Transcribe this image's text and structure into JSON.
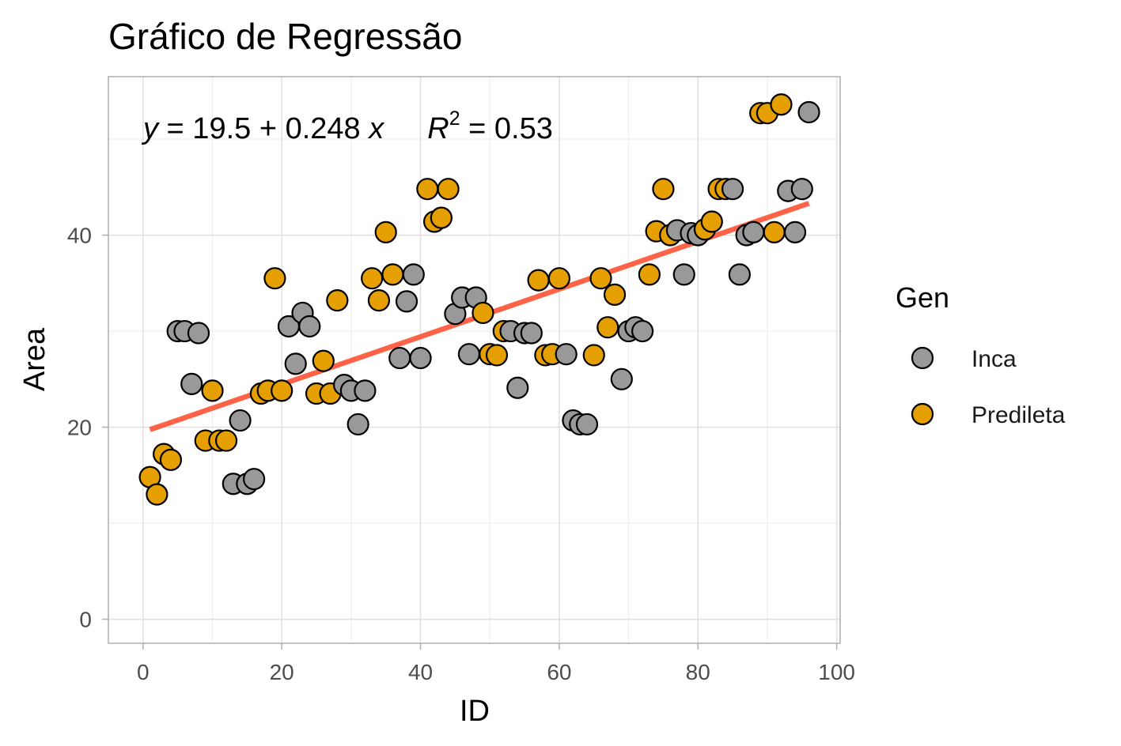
{
  "chart_data": {
    "type": "scatter",
    "title": "Gráfico de Regressão",
    "xlabel": "ID",
    "ylabel": "Area",
    "xlim": [
      -5,
      100.5
    ],
    "ylim": [
      -2.5,
      56.5
    ],
    "x_ticks": [
      0,
      20,
      40,
      60,
      80,
      100
    ],
    "y_ticks": [
      0,
      20,
      40
    ],
    "grid": true,
    "legend": {
      "title": "Gen",
      "position": "right",
      "entries": [
        {
          "label": "Inca",
          "color": "#999999"
        },
        {
          "label": "Predileta",
          "color": "#E69F00"
        }
      ]
    },
    "regression": {
      "intercept": 19.5,
      "slope": 0.248,
      "x_range": [
        1,
        96
      ],
      "color": "#FF6347",
      "equation": {
        "lhs": "y",
        "eq": " = 19.5 + 0.248 ",
        "var": "x",
        "r": "R",
        "sup": "2",
        "rhs": " = 0.53"
      }
    },
    "series": [
      {
        "name": "Inca",
        "color": "#999999",
        "points": [
          [
            5,
            30.0
          ],
          [
            6,
            30.0
          ],
          [
            7,
            24.5
          ],
          [
            8,
            29.8
          ],
          [
            13,
            14.1
          ],
          [
            14,
            20.7
          ],
          [
            15,
            14.1
          ],
          [
            16,
            14.6
          ],
          [
            21,
            30.5
          ],
          [
            22,
            26.6
          ],
          [
            23,
            31.9
          ],
          [
            24,
            30.5
          ],
          [
            29,
            24.4
          ],
          [
            30,
            23.8
          ],
          [
            31,
            20.3
          ],
          [
            32,
            23.8
          ],
          [
            37,
            27.2
          ],
          [
            38,
            33.1
          ],
          [
            39,
            35.9
          ],
          [
            40,
            27.2
          ],
          [
            45,
            31.8
          ],
          [
            46,
            33.5
          ],
          [
            47,
            27.6
          ],
          [
            48,
            33.5
          ],
          [
            53,
            30.0
          ],
          [
            54,
            24.1
          ],
          [
            55,
            29.8
          ],
          [
            56,
            29.8
          ],
          [
            61,
            27.6
          ],
          [
            62,
            20.7
          ],
          [
            63,
            20.3
          ],
          [
            64,
            20.3
          ],
          [
            69,
            25.0
          ],
          [
            70,
            30.0
          ],
          [
            71,
            30.4
          ],
          [
            72,
            30.0
          ],
          [
            77,
            40.5
          ],
          [
            78,
            35.9
          ],
          [
            79,
            40.2
          ],
          [
            80,
            40.0
          ],
          [
            85,
            44.8
          ],
          [
            86,
            35.9
          ],
          [
            87,
            40.0
          ],
          [
            88,
            40.3
          ],
          [
            93,
            44.6
          ],
          [
            94,
            40.3
          ],
          [
            95,
            44.8
          ],
          [
            96,
            52.8
          ]
        ]
      },
      {
        "name": "Predileta",
        "color": "#E69F00",
        "points": [
          [
            1,
            14.8
          ],
          [
            2,
            13.0
          ],
          [
            3,
            17.2
          ],
          [
            4,
            16.6
          ],
          [
            9,
            18.6
          ],
          [
            10,
            23.8
          ],
          [
            11,
            18.6
          ],
          [
            12,
            18.6
          ],
          [
            17,
            23.5
          ],
          [
            18,
            23.8
          ],
          [
            19,
            35.5
          ],
          [
            20,
            23.8
          ],
          [
            25,
            23.5
          ],
          [
            26,
            26.9
          ],
          [
            27,
            23.5
          ],
          [
            28,
            33.2
          ],
          [
            33,
            35.5
          ],
          [
            34,
            33.2
          ],
          [
            35,
            40.3
          ],
          [
            36,
            35.9
          ],
          [
            41,
            44.8
          ],
          [
            42,
            41.4
          ],
          [
            43,
            41.8
          ],
          [
            44,
            44.8
          ],
          [
            49,
            31.9
          ],
          [
            50,
            27.6
          ],
          [
            51,
            27.5
          ],
          [
            52,
            30.0
          ],
          [
            57,
            35.3
          ],
          [
            58,
            27.5
          ],
          [
            59,
            27.6
          ],
          [
            60,
            35.5
          ],
          [
            65,
            27.5
          ],
          [
            66,
            35.5
          ],
          [
            67,
            30.4
          ],
          [
            68,
            33.8
          ],
          [
            73,
            35.9
          ],
          [
            74,
            40.4
          ],
          [
            75,
            44.8
          ],
          [
            76,
            40.0
          ],
          [
            81,
            40.6
          ],
          [
            82,
            41.4
          ],
          [
            83,
            44.8
          ],
          [
            84,
            44.8
          ],
          [
            89,
            52.7
          ],
          [
            90,
            52.7
          ],
          [
            91,
            40.3
          ],
          [
            92,
            53.6
          ]
        ]
      }
    ]
  }
}
